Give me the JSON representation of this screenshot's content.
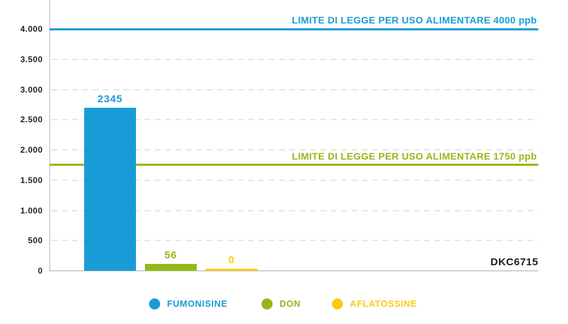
{
  "chart_data": {
    "type": "bar",
    "title": "",
    "categories": [
      "FUMONISINE",
      "DON",
      "AFLATOSSINE"
    ],
    "values": [
      2345,
      56,
      0
    ],
    "value_labels": [
      "2345",
      "56",
      "0"
    ],
    "colors": [
      "#189cd8",
      "#93b818",
      "#fdca12"
    ],
    "x_group_label": "DKC6715",
    "xlabel": "",
    "ylabel": "",
    "ylim": [
      0,
      4480
    ],
    "unit": "ppb",
    "grid": "horizontal dashed every 500",
    "legend_position": "bottom",
    "y_ticks": [
      {
        "label": "0",
        "value": 0
      },
      {
        "label": "500",
        "value": 500
      },
      {
        "label": "1.000",
        "value": 1000
      },
      {
        "label": "1.500",
        "value": 1500
      },
      {
        "label": "2.000",
        "value": 2000
      },
      {
        "label": "2.500",
        "value": 2500
      },
      {
        "label": "3.000",
        "value": 3000
      },
      {
        "label": "3.500",
        "value": 3500
      },
      {
        "label": "4.000",
        "value": 4000
      }
    ],
    "limit_lines": [
      {
        "label": "LIMITE DI LEGGE PER USO ALIMENTARE 4000 ppb",
        "value": 4000,
        "color": "#189cd8"
      },
      {
        "label": "LIMITE DI LEGGE PER USO ALIMENTARE 1750 ppb",
        "value": 1750,
        "color": "#93b818"
      }
    ],
    "bar_render_heights_units": [
      2700,
      110,
      40
    ]
  },
  "legend": {
    "items": [
      {
        "label": "FUMONISINE",
        "color": "#189cd8"
      },
      {
        "label": "DON",
        "color": "#93b818"
      },
      {
        "label": "AFLATOSSINE",
        "color": "#fdca12"
      }
    ]
  }
}
